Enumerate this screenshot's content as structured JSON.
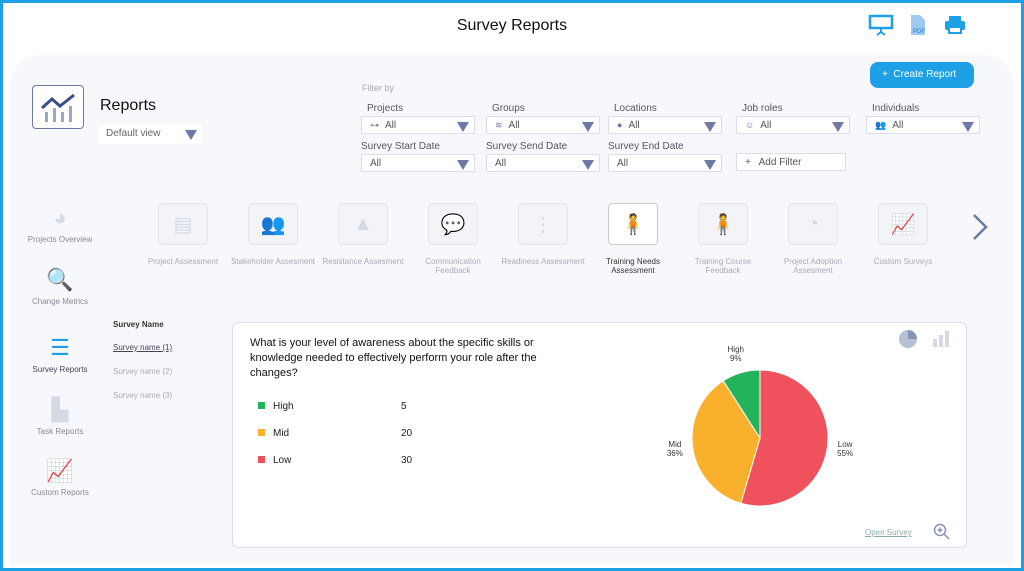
{
  "header": {
    "title": "Survey Reports",
    "icons": [
      "presentation-icon",
      "pdf-icon",
      "printer-icon"
    ],
    "pdf_label": "PDF"
  },
  "reports": {
    "title": "Reports",
    "view": "Default view"
  },
  "create_report": "Create Report",
  "filters": {
    "label": "Filter by",
    "items": [
      {
        "label": "Projects",
        "value": "All",
        "icon": "⊶"
      },
      {
        "label": "Groups",
        "value": "All",
        "icon": "≋"
      },
      {
        "label": "Locations",
        "value": "All",
        "icon": "●"
      },
      {
        "label": "Job roles",
        "value": "All",
        "icon": "☺"
      },
      {
        "label": "Individuals",
        "value": "All",
        "icon": "👥"
      },
      {
        "label": "Survey Start Date",
        "value": "All"
      },
      {
        "label": "Survey Send Date",
        "value": "All"
      },
      {
        "label": "Survey End Date",
        "value": "All"
      }
    ],
    "add_filter": "Add Filter"
  },
  "sidebar": [
    "Projects Overview",
    "Change Metrics",
    "Survey Reports",
    "Task Reports",
    "Custom Reports"
  ],
  "categories": [
    "Project Assessment",
    "Stakeholder Assesment",
    "Resistance Assesment",
    "Communication Feedback",
    "Readiness Assessment",
    "Training Needs Assessment",
    "Training Course Feedback",
    "Project Adoption Assesment",
    "Custom Surveys"
  ],
  "surveys": {
    "header": "Survey Name",
    "items": [
      "Survey name (1)",
      "Survey name (2)",
      "Survey name (3)"
    ]
  },
  "card": {
    "question": "What is your level of awareness about the specific skills or knowledge needed to effectively perform your role after the changes?",
    "open_survey": "Open Survey"
  },
  "chart_data": {
    "type": "pie",
    "categories": [
      "High",
      "Mid",
      "Low"
    ],
    "values": [
      5,
      20,
      30
    ],
    "percent_labels": [
      "9%",
      "36%",
      "55%"
    ],
    "colors": [
      "#22b35b",
      "#f9b12d",
      "#f0525d"
    ]
  }
}
